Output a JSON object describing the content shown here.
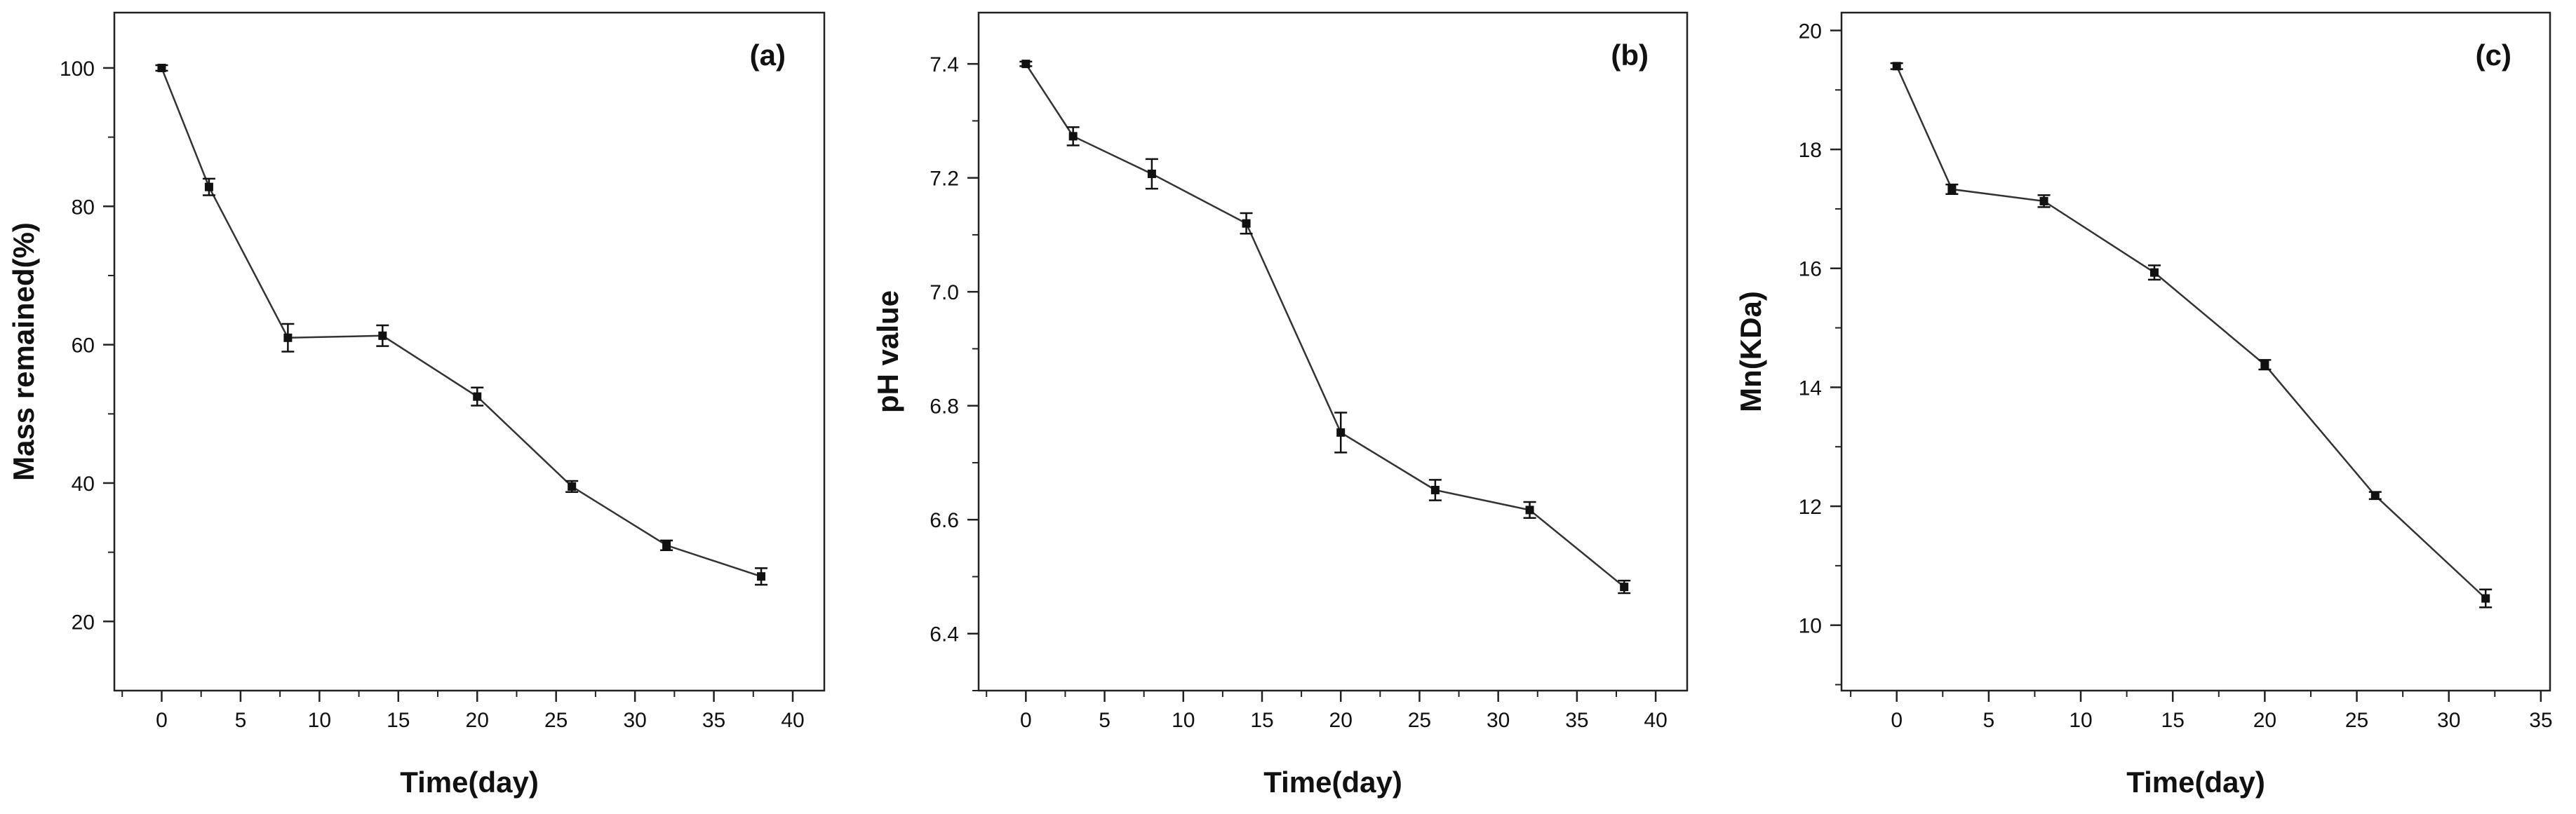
{
  "chart_data": [
    {
      "type": "line",
      "panel_label": "(a)",
      "xlabel": "Time(day)",
      "ylabel": "Mass remained(%)",
      "xlim": [
        -3,
        42
      ],
      "ylim": [
        10,
        108
      ],
      "xticks": [
        0,
        5,
        10,
        15,
        20,
        25,
        30,
        35,
        40
      ],
      "yticks": [
        20,
        40,
        60,
        80,
        100
      ],
      "x": [
        0,
        3,
        8,
        14,
        20,
        26,
        32,
        38
      ],
      "y": [
        100,
        82.8,
        61.0,
        61.3,
        52.5,
        39.5,
        31.0,
        26.5
      ],
      "err": [
        0.4,
        1.2,
        2.0,
        1.5,
        1.3,
        0.8,
        0.7,
        1.2
      ]
    },
    {
      "type": "line",
      "panel_label": "(b)",
      "xlabel": "Time(day)",
      "ylabel": "pH value",
      "xlim": [
        -3,
        42
      ],
      "ylim": [
        6.3,
        7.49
      ],
      "xticks": [
        0,
        5,
        10,
        15,
        20,
        25,
        30,
        35,
        40
      ],
      "yticks": [
        6.4,
        6.6,
        6.8,
        7.0,
        7.2,
        7.4
      ],
      "yprecision": 1,
      "x": [
        0,
        3,
        8,
        14,
        20,
        26,
        32,
        38
      ],
      "y": [
        7.4,
        7.273,
        7.207,
        7.12,
        6.753,
        6.652,
        6.617,
        6.482
      ],
      "err": [
        0.004,
        0.016,
        0.026,
        0.018,
        0.035,
        0.018,
        0.014,
        0.011
      ]
    },
    {
      "type": "line",
      "panel_label": "(c)",
      "xlabel": "Time(day)",
      "ylabel": "Mn(KDa)",
      "xlim": [
        -3,
        35.5
      ],
      "ylim": [
        8.9,
        20.3
      ],
      "xticks": [
        0,
        5,
        10,
        15,
        20,
        25,
        30,
        35
      ],
      "yticks": [
        10,
        12,
        14,
        16,
        18,
        20
      ],
      "x": [
        0,
        3,
        8,
        14,
        20,
        26,
        32
      ],
      "y": [
        19.4,
        17.33,
        17.13,
        15.93,
        14.38,
        12.18,
        10.45
      ],
      "err": [
        0.05,
        0.08,
        0.1,
        0.12,
        0.08,
        0.06,
        0.15
      ]
    }
  ]
}
